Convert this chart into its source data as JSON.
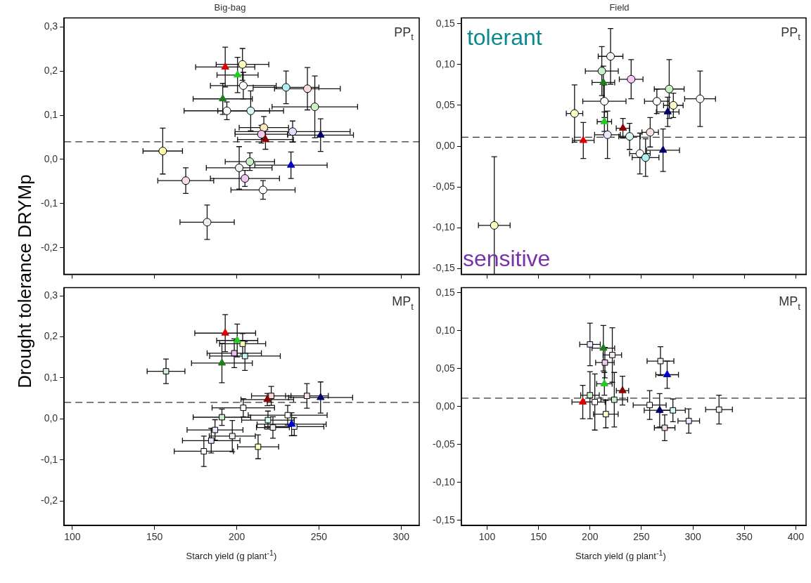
{
  "chart_data": [
    {
      "type": "scatter",
      "title": "Big-bag",
      "ylabel": "Drought tolerance DRYMp",
      "xlim": [
        95,
        311
      ],
      "ylim": [
        -0.26,
        0.32
      ],
      "xticks": [
        100,
        150,
        200,
        250,
        300
      ],
      "yticks": [
        {
          "value": -0.2,
          "label": "-0,2"
        },
        {
          "value": -0.1,
          "label": "-0,1"
        },
        {
          "value": 0,
          "label": "0,0"
        },
        {
          "value": 0.1,
          "label": "0,1"
        },
        {
          "value": 0.2,
          "label": "0,2"
        },
        {
          "value": 0.3,
          "label": "0,3"
        }
      ],
      "tick_labels": "y",
      "ref_lines": [
        {
          "axis": "y",
          "value": 0.04,
          "line_style": "dashed"
        }
      ],
      "annotations": [
        "PP$_{t}$"
      ],
      "series": [
        {
          "marker": "triangle",
          "x": [
            193,
            200.5,
            191.5,
            217.5,
            251,
            233
          ],
          "values": [
            0.209,
            0.191,
            0.137,
            0.045,
            0.055,
            -0.013
          ],
          "xerrors": [
            18,
            12.5,
            18,
            17,
            20,
            22
          ],
          "errors": [
            0.045,
            0.04,
            0.035,
            0.022,
            0.037,
            0.03
          ],
          "colors": [
            "#e00000",
            "#22cc22",
            "#1e7b1e",
            "#8b0000",
            "#000066",
            "#0000cc"
          ]
        },
        {
          "marker": "circle",
          "x": [
            203.5,
            204,
            230,
            243,
            247.5,
            194,
            208.5,
            216.5,
            215,
            234,
            155,
            208,
            201.5,
            205,
            169,
            216,
            182
          ],
          "values": [
            0.215,
            0.167,
            0.163,
            0.16,
            0.119,
            0.11,
            0.11,
            0.072,
            0.057,
            0.063,
            0.019,
            -0.005,
            -0.019,
            -0.043,
            -0.048,
            -0.069,
            -0.142
          ],
          "xerrors": [
            16,
            20,
            20,
            20,
            26,
            26,
            20,
            15,
            16,
            35,
            12,
            15,
            20,
            21,
            17,
            19.5,
            16.5
          ],
          "errors": [
            0.036,
            0.03,
            0.037,
            0.048,
            0.07,
            0.02,
            0.045,
            0.025,
            0.02,
            0.024,
            0.052,
            0.02,
            0.048,
            0.018,
            0.029,
            0.021,
            0.039
          ],
          "colors": [
            "#ffffc8",
            "#ffffff",
            "#b0f0f0",
            "#f8dcdc",
            "#d0f0c8",
            "#ffffff",
            "#d8f8f8",
            "#ffe8c0",
            "#f8c8f0",
            "#e0e0ff",
            "#ffffb0",
            "#c8f0c8",
            "#f0f0f0",
            "#f0c8f0",
            "#f8e0e0",
            "#ffffff",
            "#eeeeee"
          ]
        }
      ]
    },
    {
      "type": "scatter",
      "title": "Field",
      "xlim": [
        75,
        410
      ],
      "ylim": [
        -0.157,
        0.157
      ],
      "xticks": [
        100,
        150,
        200,
        250,
        300,
        350,
        400
      ],
      "yticks": [
        {
          "value": -0.15,
          "label": "-0,15"
        },
        {
          "value": -0.1,
          "label": "-0,10"
        },
        {
          "value": -0.05,
          "label": "-0,05"
        },
        {
          "value": 0,
          "label": "0,00"
        },
        {
          "value": 0.05,
          "label": "0,05"
        },
        {
          "value": 0.1,
          "label": "0,10"
        },
        {
          "value": 0.15,
          "label": "0,15"
        }
      ],
      "tick_labels": "y",
      "ref_lines": [
        {
          "axis": "y",
          "value": 0.011,
          "line_style": "dashed"
        }
      ],
      "annotations": [
        "PP$_{t}$",
        "tolerant",
        "sensitive"
      ],
      "series": [
        {
          "marker": "triangle",
          "x": [
            213,
            275.5,
            214,
            232,
            193.5,
            271
          ],
          "values": [
            0.078,
            0.042,
            0.03,
            0.022,
            0.007,
            -0.005
          ],
          "xerrors": [
            11,
            11,
            7,
            6.5,
            10.5,
            16
          ],
          "errors": [
            0.02,
            0.018,
            0.012,
            0.012,
            0.022,
            0.026
          ],
          "colors": [
            "#1e7b1e",
            "#000066",
            "#22cc22",
            "#8b0000",
            "#e00000",
            "#000066"
          ]
        },
        {
          "marker": "circle",
          "x": [
            220,
            211.5,
            240,
            277,
            307,
            214,
            265,
            281,
            185,
            258.5,
            217,
            238.5,
            248.5,
            254,
            107
          ],
          "values": [
            0.11,
            0.092,
            0.082,
            0.07,
            0.058,
            0.055,
            0.055,
            0.05,
            0.04,
            0.017,
            0.014,
            0.012,
            -0.009,
            -0.014,
            -0.097
          ],
          "xerrors": [
            12,
            16,
            11.5,
            14.5,
            15,
            21,
            12,
            9.5,
            8,
            8,
            12.5,
            10.5,
            10,
            13,
            15.4
          ],
          "errors": [
            0.034,
            0.03,
            0.024,
            0.036,
            0.034,
            0.02,
            0.015,
            0.015,
            0.035,
            0.018,
            0.029,
            0.016,
            0.025,
            0.023,
            [
              -0.157,
              -0.013
            ]
          ],
          "colors": [
            "#f4f4f4",
            "#c8f0c8",
            "#f8c8f8",
            "#c8f0c8",
            "#ffffff",
            "#ffffff",
            "#ffffff",
            "#ffffd0",
            "#ffffc8",
            "#f8e0e0",
            "#e8e8ff",
            "#d8f8f8",
            "#ffffff",
            "#b0f0f0",
            "#ffffc0"
          ]
        }
      ]
    },
    {
      "type": "scatter",
      "xlabel": "Starch yield (g plant$^{-1}$)",
      "xlim": [
        95,
        311
      ],
      "ylim": [
        -0.26,
        0.32
      ],
      "xticks": [
        100,
        150,
        200,
        250,
        300
      ],
      "yticks": [
        {
          "value": -0.2,
          "label": "-0,2"
        },
        {
          "value": -0.1,
          "label": "-0,1"
        },
        {
          "value": 0,
          "label": "0,0"
        },
        {
          "value": 0.1,
          "label": "0,1"
        },
        {
          "value": 0.2,
          "label": "0,2"
        },
        {
          "value": 0.3,
          "label": "0,3"
        }
      ],
      "ref_lines": [
        {
          "axis": "y",
          "value": 0.04,
          "line_style": "dashed"
        }
      ],
      "annotations": [
        "MP$_{t}$"
      ],
      "series": [
        {
          "marker": "triangle",
          "x": [
            193,
            200.3,
            191,
            251,
            218.6,
            233.4
          ],
          "values": [
            0.209,
            0.191,
            0.136,
            0.052,
            0.047,
            -0.013
          ],
          "xerrors": [
            18.5,
            12.5,
            18.5,
            19.5,
            16,
            21
          ],
          "errors": [
            0.045,
            0.04,
            0.048,
            0.038,
            0.015,
            0.028
          ],
          "colors": [
            "#e00000",
            "#22cc22",
            "#1e7b1e",
            "#000066",
            "#8b0000",
            "#0000cc"
          ]
        },
        {
          "marker": "square",
          "x": [
            203.6,
            198.5,
            205,
            157,
            221,
            242.7,
            204,
            191,
            231,
            219,
            235,
            222,
            186.8,
            197.3,
            184.5,
            213,
            180
          ],
          "values": [
            0.183,
            0.16,
            0.153,
            0.116,
            0.056,
            0.056,
            0.027,
            0.004,
            0.009,
            -0.003,
            -0.019,
            -0.021,
            -0.027,
            -0.042,
            -0.053,
            -0.068,
            -0.079
          ],
          "xerrors": [
            14,
            16.5,
            21.5,
            11.5,
            12,
            13,
            19,
            17.5,
            24,
            16,
            18,
            10,
            17,
            14,
            17.5,
            12.5,
            18
          ],
          "errors": [
            0.025,
            0.035,
            0.035,
            0.03,
            0.023,
            0.03,
            0.022,
            0.02,
            0.024,
            0.022,
            0.022,
            0.026,
            0.025,
            0.038,
            0.03,
            0.029,
            0.037
          ],
          "colors": [
            "#ffffc8",
            "#f0c0f0",
            "#c8f4f4",
            "#d8f0d8",
            "#f8d8d8",
            "#f8e0e0",
            "#ffffff",
            "#c8f0c8",
            "#ffffff",
            "#d8f8f8",
            "#e8e8ff",
            "#eeeeee",
            "#e8e8ff",
            "#eeeeee",
            "#e8e8ff",
            "#ffffb8",
            "#ffffff"
          ]
        }
      ]
    },
    {
      "type": "scatter",
      "xlabel": "Starch yield (g plant$^{-1}$)",
      "xlim": [
        75,
        410
      ],
      "ylim": [
        -0.157,
        0.157
      ],
      "xticks": [
        100,
        150,
        200,
        250,
        300,
        350,
        400
      ],
      "yticks": [
        {
          "value": -0.15,
          "label": "-0,15"
        },
        {
          "value": -0.1,
          "label": "-0,10"
        },
        {
          "value": -0.05,
          "label": "-0,05"
        },
        {
          "value": 0,
          "label": "0,00"
        },
        {
          "value": 0.05,
          "label": "0,05"
        },
        {
          "value": 0.1,
          "label": "0,10"
        },
        {
          "value": 0.15,
          "label": "0,15"
        }
      ],
      "ref_lines": [
        {
          "axis": "y",
          "value": 0.011,
          "line_style": "dashed"
        }
      ],
      "annotations": [
        "MP$_{t}$"
      ],
      "series": [
        {
          "marker": "triangle",
          "x": [
            213,
            275,
            214,
            231.6,
            193,
            267.7
          ],
          "values": [
            0.077,
            0.042,
            0.03,
            0.021,
            0.006,
            -0.005
          ],
          "xerrors": [
            11,
            11,
            7.5,
            6,
            10.5,
            15
          ],
          "errors": [
            0.03,
            0.018,
            0.015,
            0.019,
            0.022,
            0.022
          ],
          "colors": [
            "#1e7b1e",
            "#0000cc",
            "#22cc22",
            "#8b0000",
            "#e00000",
            "#000066"
          ]
        },
        {
          "marker": "square",
          "x": [
            200,
            221.7,
            214.5,
            268.5,
            200,
            223.6,
            204.7,
            215.4,
            258,
            280.6,
            272.6,
            296,
            325.4
          ],
          "values": [
            0.082,
            0.068,
            0.058,
            0.06,
            0.015,
            0.009,
            0.006,
            -0.01,
            0.002,
            -0.005,
            -0.028,
            -0.019,
            -0.004
          ],
          "xerrors": [
            10,
            9,
            9,
            13,
            9,
            13,
            10,
            12,
            16,
            12,
            10,
            10.5,
            13
          ],
          "errors": [
            0.028,
            0.036,
            0.02,
            0.019,
            0.031,
            0.036,
            0.037,
            0.018,
            0.019,
            0.015,
            0.017,
            0.016,
            0.019
          ],
          "colors": [
            "#e8e8ff",
            "#f8e8e8",
            "#f0c8f0",
            "#eeeeee",
            "#c8f0c8",
            "#c8f0c8",
            "#ffffff",
            "#ffffd0",
            "#ffffff",
            "#d8f8f8",
            "#f8d8d8",
            "#e8e8ff",
            "#eeeeee"
          ]
        }
      ]
    }
  ]
}
